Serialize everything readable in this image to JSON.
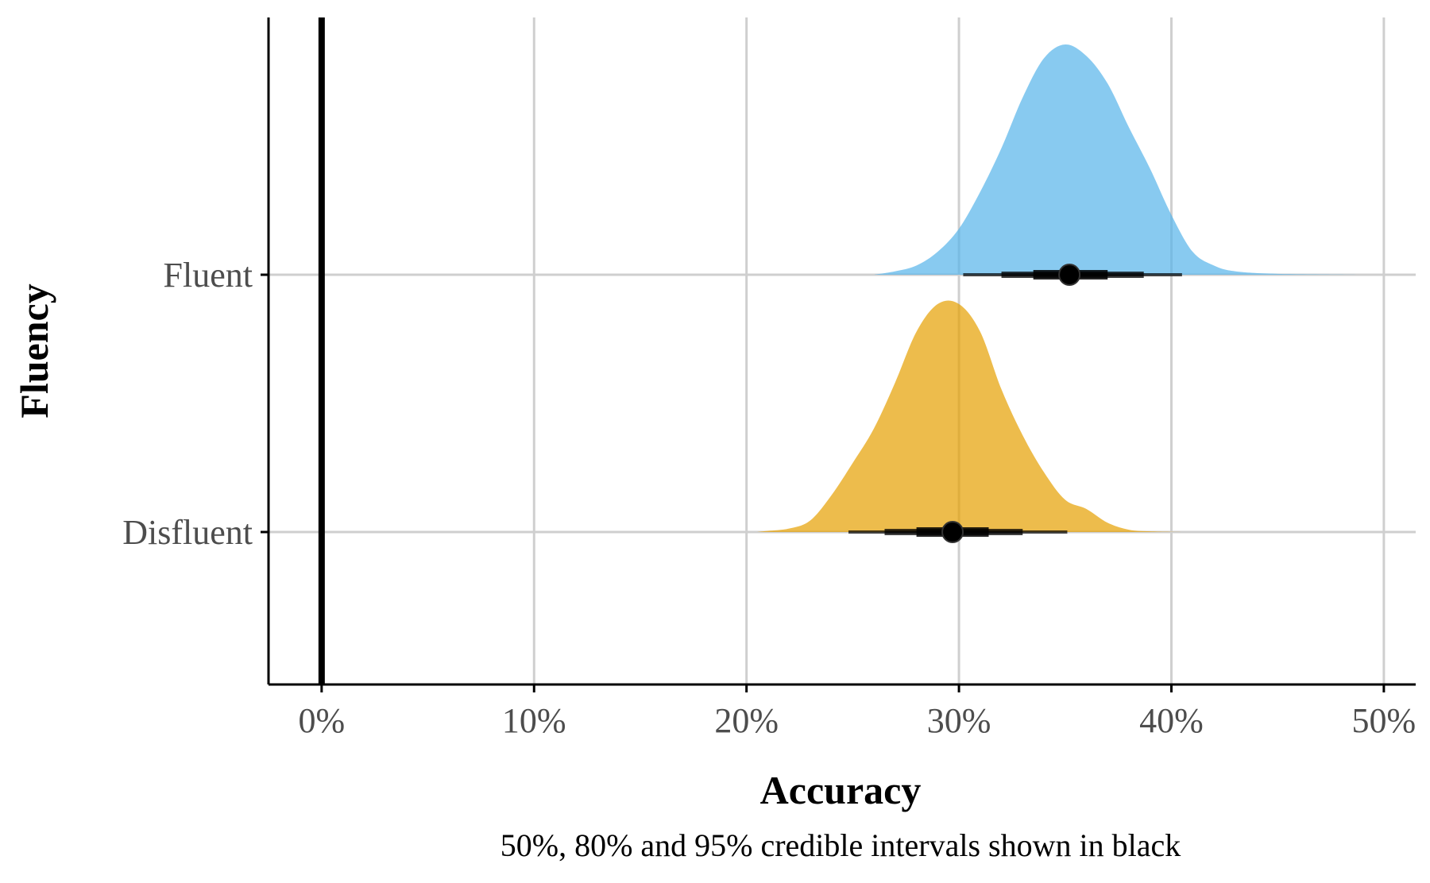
{
  "chart_data": {
    "type": "density-interval",
    "xlabel": "Accuracy",
    "ylabel": "Fluency",
    "caption": "50%, 80% and 95% credible intervals shown in black",
    "xlim": [
      -0.025,
      0.515
    ],
    "x_ticks": [
      0,
      0.1,
      0.2,
      0.3,
      0.4,
      0.5
    ],
    "x_tick_labels": [
      "0%",
      "10%",
      "20%",
      "30%",
      "40%",
      "50%"
    ],
    "reference_line": 0,
    "grid": true,
    "categories": [
      "Disfluent",
      "Fluent"
    ],
    "series": [
      {
        "name": "Fluent",
        "color": "#56B4E9",
        "median": 0.352,
        "intervals": {
          "50": [
            0.335,
            0.37
          ],
          "80": [
            0.32,
            0.387
          ],
          "95": [
            0.302,
            0.405
          ]
        },
        "density": [
          [
            0.26,
            0.0
          ],
          [
            0.27,
            0.015
          ],
          [
            0.28,
            0.04
          ],
          [
            0.29,
            0.1
          ],
          [
            0.3,
            0.2
          ],
          [
            0.31,
            0.36
          ],
          [
            0.32,
            0.55
          ],
          [
            0.33,
            0.77
          ],
          [
            0.34,
            0.94
          ],
          [
            0.35,
            1.0
          ],
          [
            0.36,
            0.95
          ],
          [
            0.37,
            0.83
          ],
          [
            0.38,
            0.64
          ],
          [
            0.39,
            0.46
          ],
          [
            0.4,
            0.26
          ],
          [
            0.41,
            0.1
          ],
          [
            0.42,
            0.04
          ],
          [
            0.43,
            0.015
          ],
          [
            0.45,
            0.004
          ],
          [
            0.49,
            0.0
          ]
        ]
      },
      {
        "name": "Disfluent",
        "color": "#E69F00",
        "median": 0.297,
        "intervals": {
          "50": [
            0.28,
            0.314
          ],
          "80": [
            0.265,
            0.33
          ],
          "95": [
            0.248,
            0.351
          ]
        },
        "density": [
          [
            0.205,
            0.0
          ],
          [
            0.21,
            0.005
          ],
          [
            0.22,
            0.015
          ],
          [
            0.23,
            0.05
          ],
          [
            0.24,
            0.16
          ],
          [
            0.25,
            0.3
          ],
          [
            0.26,
            0.45
          ],
          [
            0.27,
            0.65
          ],
          [
            0.28,
            0.87
          ],
          [
            0.29,
            0.99
          ],
          [
            0.3,
            0.99
          ],
          [
            0.31,
            0.87
          ],
          [
            0.32,
            0.62
          ],
          [
            0.33,
            0.42
          ],
          [
            0.34,
            0.26
          ],
          [
            0.35,
            0.14
          ],
          [
            0.36,
            0.1
          ],
          [
            0.37,
            0.04
          ],
          [
            0.38,
            0.01
          ],
          [
            0.39,
            0.003
          ],
          [
            0.405,
            0.0
          ]
        ]
      }
    ]
  }
}
